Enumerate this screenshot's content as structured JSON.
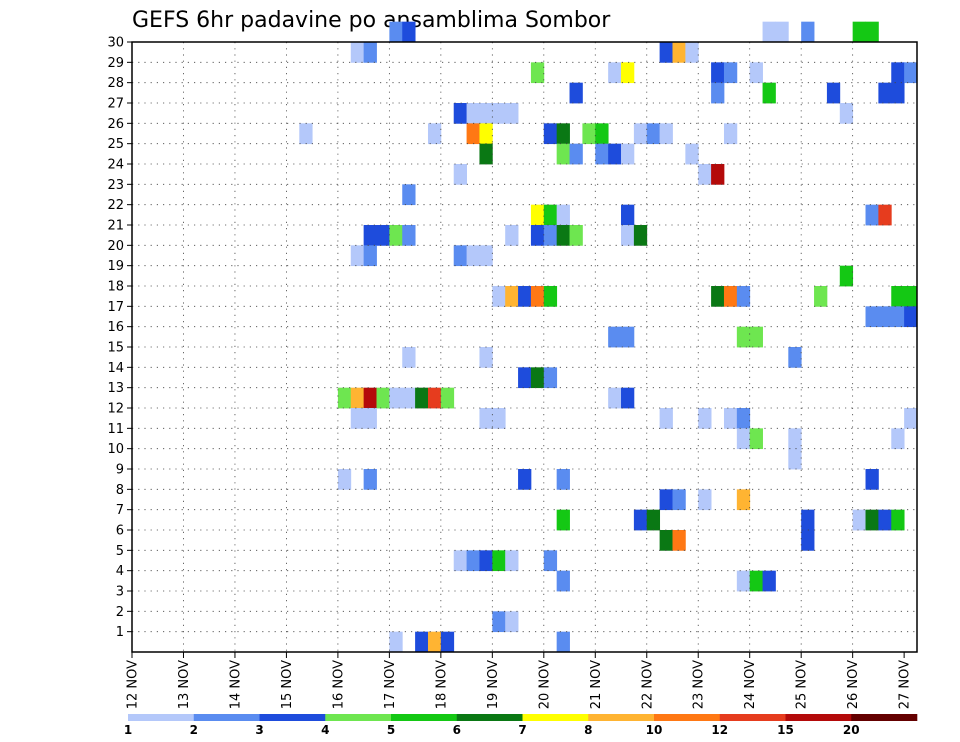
{
  "chart_data": {
    "type": "heatmap",
    "title": "GEFS 6hr padavine po ansamblima Sombor",
    "x_tick_labels": [
      "12 NOV",
      "13 NOV",
      "14 NOV",
      "15 NOV",
      "16 NOV",
      "17 NOV",
      "18 NOV",
      "19 NOV",
      "20 NOV",
      "21 NOV",
      "22 NOV",
      "23 NOV",
      "24 NOV",
      "25 NOV",
      "26 NOV",
      "27 NOV"
    ],
    "y_tick_labels": [
      "1",
      "2",
      "3",
      "4",
      "5",
      "6",
      "7",
      "8",
      "9",
      "10",
      "11",
      "12",
      "13",
      "14",
      "15",
      "16",
      "17",
      "18",
      "19",
      "20",
      "21",
      "22",
      "23",
      "24",
      "25",
      "26",
      "27",
      "28",
      "29",
      "30"
    ],
    "x_range_steps": [
      0,
      61
    ],
    "y_range_members": [
      0,
      30
    ],
    "steps_per_day": 4,
    "grid": true,
    "colorbar": {
      "labels": [
        "1",
        "2",
        "3",
        "4",
        "5",
        "6",
        "7",
        "8",
        "10",
        "12",
        "15",
        "20"
      ],
      "colors": [
        "#b4c8fa",
        "#5a8cf0",
        "#1e4cdc",
        "#6ee650",
        "#14c814",
        "#0a7814",
        "#ffff00",
        "#ffb432",
        "#ff7814",
        "#e63c1e",
        "#b40a0a",
        "#640000"
      ]
    },
    "cells": [
      [
        30,
        20,
        2
      ],
      [
        30,
        21,
        3
      ],
      [
        30,
        49,
        1
      ],
      [
        30,
        50,
        1
      ],
      [
        30,
        52,
        2
      ],
      [
        30,
        56,
        5
      ],
      [
        30,
        57,
        5
      ],
      [
        29,
        17,
        1
      ],
      [
        29,
        18,
        2
      ],
      [
        29,
        41,
        3
      ],
      [
        29,
        42,
        8
      ],
      [
        29,
        43,
        1
      ],
      [
        28,
        31,
        4
      ],
      [
        28,
        37,
        1
      ],
      [
        28,
        38,
        7
      ],
      [
        28,
        45,
        3
      ],
      [
        28,
        46,
        2
      ],
      [
        28,
        48,
        1
      ],
      [
        28,
        59,
        3
      ],
      [
        28,
        60,
        2
      ],
      [
        27,
        34,
        3
      ],
      [
        27,
        45,
        2
      ],
      [
        27,
        49,
        5
      ],
      [
        27,
        54,
        3
      ],
      [
        27,
        58,
        3
      ],
      [
        27,
        59,
        3
      ],
      [
        26,
        25,
        3
      ],
      [
        26,
        26,
        1
      ],
      [
        26,
        27,
        1
      ],
      [
        26,
        28,
        1
      ],
      [
        26,
        29,
        1
      ],
      [
        26,
        55,
        1
      ],
      [
        25,
        13,
        1
      ],
      [
        25,
        23,
        1
      ],
      [
        25,
        26,
        9
      ],
      [
        25,
        27,
        7
      ],
      [
        25,
        32,
        3
      ],
      [
        25,
        33,
        6
      ],
      [
        25,
        35,
        4
      ],
      [
        25,
        36,
        5
      ],
      [
        25,
        39,
        1
      ],
      [
        25,
        40,
        2
      ],
      [
        25,
        41,
        1
      ],
      [
        25,
        46,
        1
      ],
      [
        24,
        27,
        6
      ],
      [
        24,
        33,
        4
      ],
      [
        24,
        34,
        2
      ],
      [
        24,
        36,
        2
      ],
      [
        24,
        37,
        3
      ],
      [
        24,
        38,
        1
      ],
      [
        24,
        43,
        1
      ],
      [
        23,
        25,
        1
      ],
      [
        23,
        44,
        1
      ],
      [
        23,
        45,
        11
      ],
      [
        22,
        21,
        2
      ],
      [
        21,
        31,
        7
      ],
      [
        21,
        32,
        5
      ],
      [
        21,
        33,
        1
      ],
      [
        21,
        38,
        3
      ],
      [
        21,
        57,
        2
      ],
      [
        21,
        58,
        10
      ],
      [
        20,
        18,
        3
      ],
      [
        20,
        19,
        3
      ],
      [
        20,
        20,
        4
      ],
      [
        20,
        21,
        2
      ],
      [
        20,
        29,
        1
      ],
      [
        20,
        31,
        3
      ],
      [
        20,
        32,
        2
      ],
      [
        20,
        33,
        6
      ],
      [
        20,
        34,
        4
      ],
      [
        20,
        38,
        1
      ],
      [
        20,
        39,
        6
      ],
      [
        19,
        17,
        1
      ],
      [
        19,
        18,
        2
      ],
      [
        19,
        25,
        2
      ],
      [
        19,
        26,
        1
      ],
      [
        19,
        27,
        1
      ],
      [
        18,
        55,
        5
      ],
      [
        17,
        28,
        1
      ],
      [
        17,
        29,
        8
      ],
      [
        17,
        30,
        3
      ],
      [
        17,
        31,
        9
      ],
      [
        17,
        32,
        5
      ],
      [
        17,
        45,
        6
      ],
      [
        17,
        46,
        9
      ],
      [
        17,
        47,
        2
      ],
      [
        17,
        53,
        4
      ],
      [
        17,
        59,
        5
      ],
      [
        17,
        60,
        5
      ],
      [
        16,
        57,
        2
      ],
      [
        16,
        58,
        2
      ],
      [
        16,
        59,
        2
      ],
      [
        16,
        60,
        3
      ],
      [
        15,
        37,
        2
      ],
      [
        15,
        38,
        2
      ],
      [
        15,
        47,
        4
      ],
      [
        15,
        48,
        4
      ],
      [
        14,
        21,
        1
      ],
      [
        14,
        27,
        1
      ],
      [
        14,
        51,
        2
      ],
      [
        13,
        30,
        3
      ],
      [
        13,
        31,
        6
      ],
      [
        13,
        32,
        2
      ],
      [
        12,
        16,
        4
      ],
      [
        12,
        17,
        8
      ],
      [
        12,
        18,
        11
      ],
      [
        12,
        19,
        4
      ],
      [
        12,
        20,
        1
      ],
      [
        12,
        21,
        1
      ],
      [
        12,
        22,
        6
      ],
      [
        12,
        23,
        10
      ],
      [
        12,
        24,
        4
      ],
      [
        12,
        37,
        1
      ],
      [
        12,
        38,
        3
      ],
      [
        11,
        17,
        1
      ],
      [
        11,
        18,
        1
      ],
      [
        11,
        27,
        1
      ],
      [
        11,
        28,
        1
      ],
      [
        11,
        41,
        1
      ],
      [
        11,
        44,
        1
      ],
      [
        11,
        46,
        1
      ],
      [
        11,
        47,
        2
      ],
      [
        11,
        60,
        1
      ],
      [
        10,
        47,
        1
      ],
      [
        10,
        48,
        4
      ],
      [
        10,
        51,
        1
      ],
      [
        10,
        59,
        1
      ],
      [
        9,
        51,
        1
      ],
      [
        8,
        16,
        1
      ],
      [
        8,
        18,
        2
      ],
      [
        8,
        30,
        3
      ],
      [
        8,
        33,
        2
      ],
      [
        8,
        57,
        3
      ],
      [
        7,
        41,
        3
      ],
      [
        7,
        42,
        2
      ],
      [
        7,
        44,
        1
      ],
      [
        7,
        47,
        8
      ],
      [
        6,
        33,
        5
      ],
      [
        6,
        39,
        3
      ],
      [
        6,
        40,
        6
      ],
      [
        6,
        56,
        1
      ],
      [
        6,
        57,
        6
      ],
      [
        6,
        58,
        3
      ],
      [
        6,
        59,
        5
      ],
      [
        6,
        52,
        3
      ],
      [
        5,
        41,
        6
      ],
      [
        5,
        42,
        9
      ],
      [
        5,
        52,
        3
      ],
      [
        4,
        25,
        1
      ],
      [
        4,
        26,
        2
      ],
      [
        4,
        27,
        3
      ],
      [
        4,
        28,
        5
      ],
      [
        4,
        29,
        1
      ],
      [
        4,
        32,
        2
      ],
      [
        3,
        33,
        2
      ],
      [
        3,
        47,
        1
      ],
      [
        3,
        48,
        5
      ],
      [
        3,
        49,
        3
      ],
      [
        1,
        28,
        2
      ],
      [
        1,
        29,
        1
      ],
      [
        0,
        20,
        1
      ],
      [
        0,
        22,
        3
      ],
      [
        0,
        23,
        8
      ],
      [
        0,
        24,
        3
      ],
      [
        0,
        33,
        2
      ]
    ]
  }
}
